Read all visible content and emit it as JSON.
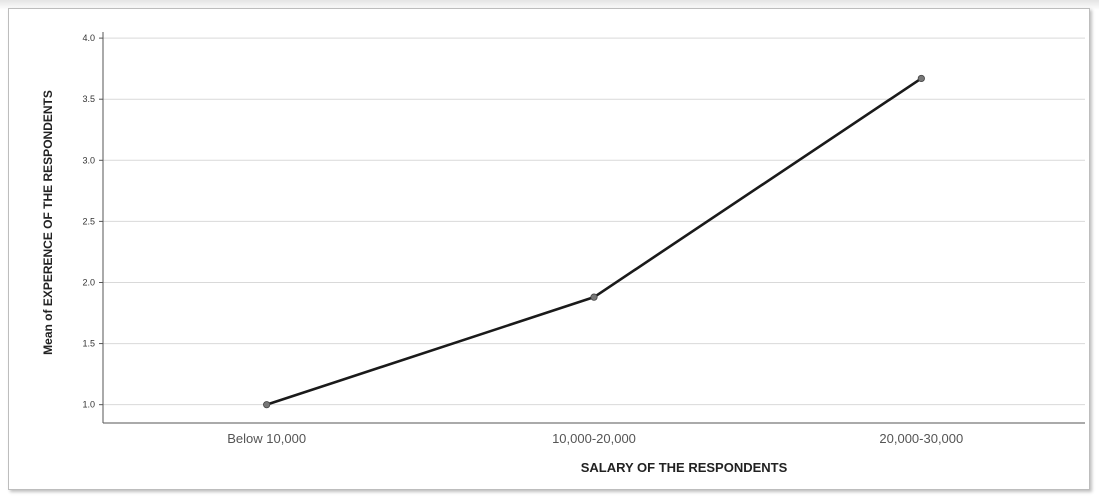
{
  "chart_data": {
    "type": "line",
    "title": "",
    "xlabel": "SALARY OF THE RESPONDENTS",
    "ylabel": "Mean of EXPERENCE OF THE RESPONDENTS",
    "categories": [
      "Below 10,000",
      "10,000-20,000",
      "20,000-30,000"
    ],
    "series": [
      {
        "values": [
          1.0,
          1.88,
          3.67
        ]
      }
    ],
    "ylim": [
      0.85,
      4.05
    ],
    "yticks": [
      "1.0",
      "1.5",
      "2.0",
      "2.5",
      "3.0",
      "3.5",
      "4.0"
    ],
    "ytick_values": [
      1.0,
      1.5,
      2.0,
      2.5,
      3.0,
      3.5,
      4.0
    ],
    "grid": true,
    "line_color": "#1a1a1a",
    "marker_color": "#777777",
    "grid_color": "#d9d9d9"
  }
}
